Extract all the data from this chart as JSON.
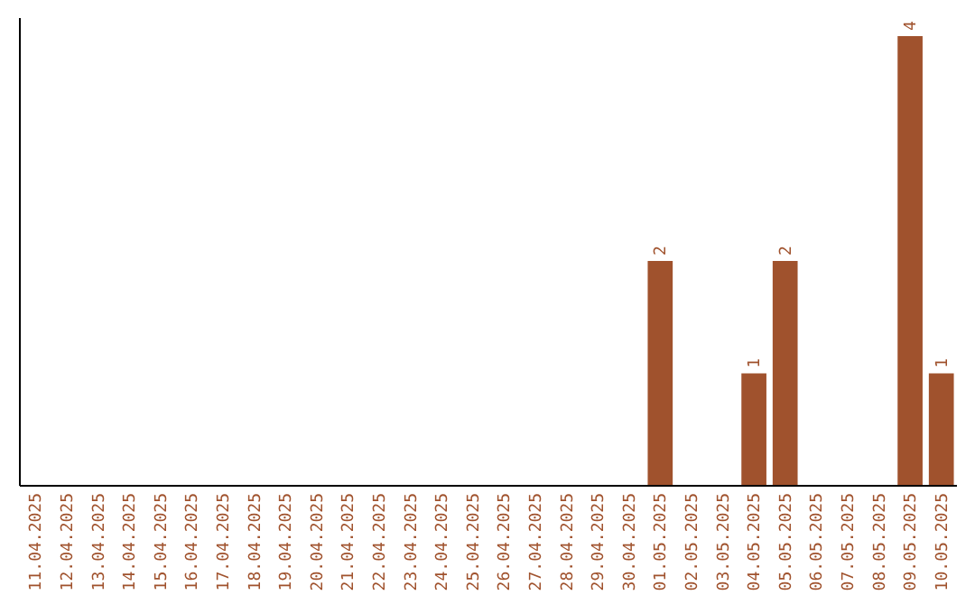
{
  "chart_data": {
    "type": "bar",
    "categories": [
      "11.04.2025",
      "12.04.2025",
      "13.04.2025",
      "14.04.2025",
      "15.04.2025",
      "16.04.2025",
      "17.04.2025",
      "18.04.2025",
      "19.04.2025",
      "20.04.2025",
      "21.04.2025",
      "22.04.2025",
      "23.04.2025",
      "24.04.2025",
      "25.04.2025",
      "26.04.2025",
      "27.04.2025",
      "28.04.2025",
      "29.04.2025",
      "30.04.2025",
      "01.05.2025",
      "02.05.2025",
      "03.05.2025",
      "04.05.2025",
      "05.05.2025",
      "06.05.2025",
      "07.05.2025",
      "08.05.2025",
      "09.05.2025",
      "10.05.2025"
    ],
    "values": [
      null,
      null,
      null,
      null,
      null,
      null,
      null,
      null,
      null,
      null,
      null,
      null,
      null,
      null,
      null,
      null,
      null,
      null,
      null,
      null,
      2,
      null,
      null,
      1,
      2,
      null,
      null,
      null,
      4,
      1
    ],
    "data_labels": true,
    "color": "#a0522d",
    "tick_labels": "x"
  }
}
